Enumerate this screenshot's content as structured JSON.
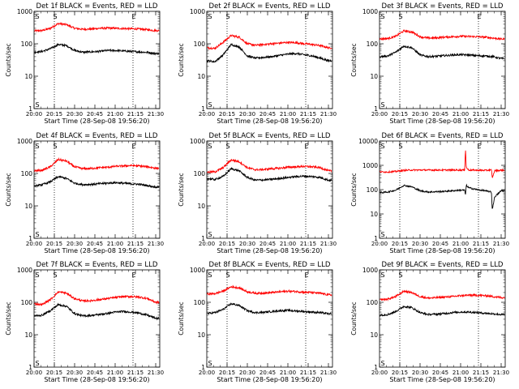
{
  "figure": {
    "background": "#ffffff",
    "axis_color": "#000000"
  },
  "chart_data": [
    {
      "id": "det1f",
      "type": "line",
      "title": "Det 1f BLACK = Events, RED = LLD",
      "ylabel": "Counts/sec",
      "xlabel": "Start Time (28-Sep-08 19:56:20)",
      "show_ylabel": true,
      "show_xlabel": true,
      "yscale": "log",
      "ylim": [
        1,
        1000
      ],
      "xlim": [
        20.0,
        21.55
      ],
      "ytick_labels": [
        "1",
        "10",
        "100",
        "1000"
      ],
      "xtick_labels": [
        "20:00",
        "20:15",
        "20:30",
        "20:45",
        "21:00",
        "21:15",
        "21:30"
      ],
      "vlines": [
        20.25,
        21.22
      ],
      "vline_labels": [
        "S",
        "E"
      ],
      "series": [
        {
          "color": "#ff0000",
          "x": [
            20.0,
            20.1,
            20.2,
            20.3,
            20.4,
            20.5,
            20.6,
            20.7,
            20.8,
            20.9,
            21.0,
            21.1,
            21.2,
            21.3,
            21.4,
            21.5
          ],
          "values": [
            250,
            255,
            300,
            420,
            390,
            300,
            280,
            285,
            300,
            305,
            300,
            295,
            290,
            285,
            270,
            255
          ]
        },
        {
          "color": "#000000",
          "x": [
            20.0,
            20.1,
            20.2,
            20.3,
            20.4,
            20.5,
            20.6,
            20.7,
            20.8,
            20.9,
            21.0,
            21.1,
            21.2,
            21.3,
            21.4,
            21.5
          ],
          "values": [
            55,
            58,
            70,
            95,
            88,
            62,
            55,
            56,
            58,
            62,
            62,
            60,
            58,
            56,
            54,
            50
          ]
        }
      ]
    },
    {
      "id": "det2f",
      "type": "line",
      "title": "Det 2f BLACK = Events, RED = LLD",
      "ylabel": "Counts/sec",
      "xlabel": "Start Time (28-Sep-08 19:56:20)",
      "show_ylabel": true,
      "show_xlabel": true,
      "yscale": "log",
      "ylim": [
        1,
        1000
      ],
      "xlim": [
        20.0,
        21.55
      ],
      "ytick_labels": [
        "1",
        "10",
        "100",
        "1000"
      ],
      "xtick_labels": [
        "20:00",
        "20:15",
        "20:30",
        "20:45",
        "21:00",
        "21:15",
        "21:30"
      ],
      "vlines": [
        20.25,
        21.22
      ],
      "vline_labels": [
        "S",
        "E"
      ],
      "series": [
        {
          "color": "#ff0000",
          "x": [
            20.0,
            20.1,
            20.2,
            20.3,
            20.4,
            20.5,
            20.6,
            20.7,
            20.8,
            20.9,
            21.0,
            21.1,
            21.2,
            21.3,
            21.4,
            21.5
          ],
          "values": [
            75,
            72,
            110,
            180,
            160,
            100,
            90,
            95,
            100,
            105,
            110,
            108,
            100,
            95,
            88,
            75
          ]
        },
        {
          "color": "#000000",
          "x": [
            20.0,
            20.1,
            20.2,
            20.3,
            20.4,
            20.5,
            20.6,
            20.7,
            20.8,
            20.9,
            21.0,
            21.1,
            21.2,
            21.3,
            21.4,
            21.5
          ],
          "values": [
            30,
            28,
            45,
            95,
            80,
            42,
            36,
            38,
            40,
            44,
            48,
            50,
            46,
            42,
            36,
            30
          ]
        }
      ]
    },
    {
      "id": "det3f",
      "type": "line",
      "title": "Det 3f BLACK = Events, RED = LLD",
      "ylabel": "Counts/sec",
      "xlabel": "Start Time (28-Sep-08 19:56:20)",
      "show_ylabel": true,
      "show_xlabel": true,
      "yscale": "log",
      "ylim": [
        1,
        1000
      ],
      "xlim": [
        20.0,
        21.55
      ],
      "ytick_labels": [
        "1",
        "10",
        "100",
        "1000"
      ],
      "xtick_labels": [
        "20:00",
        "20:15",
        "20:30",
        "20:45",
        "21:00",
        "21:15",
        "21:30"
      ],
      "vlines": [
        20.25,
        21.22
      ],
      "vline_labels": [
        "S",
        "E"
      ],
      "series": [
        {
          "color": "#ff0000",
          "x": [
            20.0,
            20.1,
            20.2,
            20.3,
            20.4,
            20.5,
            20.6,
            20.7,
            20.8,
            20.9,
            21.0,
            21.1,
            21.2,
            21.3,
            21.4,
            21.5
          ],
          "values": [
            140,
            145,
            170,
            250,
            230,
            165,
            150,
            152,
            160,
            165,
            170,
            168,
            165,
            160,
            150,
            140
          ]
        },
        {
          "color": "#000000",
          "x": [
            20.0,
            20.1,
            20.2,
            20.3,
            20.4,
            20.5,
            20.6,
            20.7,
            20.8,
            20.9,
            21.0,
            21.1,
            21.2,
            21.3,
            21.4,
            21.5
          ],
          "values": [
            40,
            42,
            55,
            85,
            75,
            45,
            40,
            41,
            43,
            45,
            46,
            45,
            43,
            42,
            40,
            35
          ]
        }
      ]
    },
    {
      "id": "det4f",
      "type": "line",
      "title": "Det 4f BLACK = Events, RED = LLD",
      "ylabel": "Counts/sec",
      "xlabel": "Start Time (28-Sep-08 19:56:20)",
      "show_ylabel": true,
      "show_xlabel": true,
      "yscale": "log",
      "ylim": [
        1,
        1000
      ],
      "xlim": [
        20.0,
        21.55
      ],
      "ytick_labels": [
        "1",
        "10",
        "100",
        "1000"
      ],
      "xtick_labels": [
        "20:00",
        "20:15",
        "20:30",
        "20:45",
        "21:00",
        "21:15",
        "21:30"
      ],
      "vlines": [
        20.25,
        21.22
      ],
      "vline_labels": [
        "S",
        "E"
      ],
      "series": [
        {
          "color": "#ff0000",
          "x": [
            20.0,
            20.1,
            20.2,
            20.3,
            20.4,
            20.5,
            20.6,
            20.7,
            20.8,
            20.9,
            21.0,
            21.1,
            21.2,
            21.3,
            21.4,
            21.5
          ],
          "values": [
            120,
            125,
            160,
            270,
            240,
            160,
            140,
            142,
            150,
            155,
            165,
            170,
            175,
            170,
            160,
            145
          ]
        },
        {
          "color": "#000000",
          "x": [
            20.0,
            20.1,
            20.2,
            20.3,
            20.4,
            20.5,
            20.6,
            20.7,
            20.8,
            20.9,
            21.0,
            21.1,
            21.2,
            21.3,
            21.4,
            21.5
          ],
          "values": [
            40,
            45,
            55,
            80,
            70,
            50,
            45,
            46,
            48,
            50,
            52,
            50,
            48,
            46,
            42,
            38
          ]
        }
      ]
    },
    {
      "id": "det5f",
      "type": "line",
      "title": "Det 5f BLACK = Events, RED = LLD",
      "ylabel": "Counts/sec",
      "xlabel": "Start Time (28-Sep-08 19:56:20)",
      "show_ylabel": true,
      "show_xlabel": true,
      "yscale": "log",
      "ylim": [
        1,
        1000
      ],
      "xlim": [
        20.0,
        21.55
      ],
      "ytick_labels": [
        "1",
        "10",
        "100",
        "1000"
      ],
      "xtick_labels": [
        "20:00",
        "20:15",
        "20:30",
        "20:45",
        "21:00",
        "21:15",
        "21:30"
      ],
      "vlines": [
        20.25,
        21.22
      ],
      "vline_labels": [
        "S",
        "E"
      ],
      "series": [
        {
          "color": "#ff0000",
          "x": [
            20.0,
            20.1,
            20.2,
            20.3,
            20.4,
            20.5,
            20.6,
            20.7,
            20.8,
            20.9,
            21.0,
            21.1,
            21.2,
            21.3,
            21.4,
            21.5
          ],
          "values": [
            110,
            112,
            150,
            260,
            230,
            150,
            130,
            132,
            140,
            145,
            155,
            160,
            165,
            160,
            150,
            120
          ]
        },
        {
          "color": "#000000",
          "x": [
            20.0,
            20.1,
            20.2,
            20.3,
            20.4,
            20.5,
            20.6,
            20.7,
            20.8,
            20.9,
            21.0,
            21.1,
            21.2,
            21.3,
            21.4,
            21.5
          ],
          "values": [
            70,
            65,
            80,
            140,
            120,
            75,
            62,
            63,
            66,
            70,
            75,
            80,
            82,
            80,
            75,
            62
          ]
        }
      ]
    },
    {
      "id": "det6f",
      "type": "line",
      "title": "Det 6f BLACK = Events, RED = LLD",
      "ylabel": "Counts/sec",
      "xlabel": "Start Time (28-Sep-08 19:56:20)",
      "show_ylabel": true,
      "show_xlabel": true,
      "yscale": "log",
      "ylim": [
        1,
        10000
      ],
      "xlim": [
        20.0,
        21.55
      ],
      "ytick_labels": [
        "1",
        "10",
        "100",
        "1000",
        "10000"
      ],
      "xtick_labels": [
        "20:00",
        "20:15",
        "20:30",
        "20:45",
        "21:00",
        "21:15",
        "21:30"
      ],
      "vlines": [
        20.25,
        21.22
      ],
      "vline_labels": [
        "S",
        "E"
      ],
      "series": [
        {
          "color": "#ff0000",
          "x": [
            20.0,
            20.1,
            20.2,
            20.3,
            20.4,
            20.5,
            20.6,
            20.7,
            20.8,
            20.9,
            21.0,
            21.05,
            21.06,
            21.07,
            21.1,
            21.2,
            21.3,
            21.38,
            21.39,
            21.42,
            21.5
          ],
          "values": [
            540,
            530,
            560,
            620,
            640,
            640,
            640,
            640,
            640,
            640,
            640,
            640,
            5000,
            800,
            640,
            630,
            620,
            650,
            300,
            600,
            630
          ]
        },
        {
          "color": "#000000",
          "x": [
            20.0,
            20.1,
            20.2,
            20.3,
            20.4,
            20.5,
            20.6,
            20.7,
            20.8,
            20.9,
            21.0,
            21.05,
            21.06,
            21.07,
            21.1,
            21.2,
            21.3,
            21.38,
            21.39,
            21.42,
            21.5
          ],
          "values": [
            75,
            80,
            95,
            150,
            130,
            90,
            80,
            82,
            85,
            90,
            95,
            95,
            60,
            150,
            120,
            100,
            90,
            80,
            15,
            50,
            90
          ]
        }
      ]
    },
    {
      "id": "det7f",
      "type": "line",
      "title": "Det 7f BLACK = Events, RED = LLD",
      "ylabel": "Counts/sec",
      "xlabel": "Start Time (28-Sep-08 19:56:20)",
      "show_ylabel": true,
      "show_xlabel": true,
      "yscale": "log",
      "ylim": [
        1,
        1000
      ],
      "xlim": [
        20.0,
        21.55
      ],
      "ytick_labels": [
        "1",
        "10",
        "100",
        "1000"
      ],
      "xtick_labels": [
        "20:00",
        "20:15",
        "20:30",
        "20:45",
        "21:00",
        "21:15",
        "21:30"
      ],
      "vlines": [
        20.25,
        21.22
      ],
      "vline_labels": [
        "S",
        "E"
      ],
      "series": [
        {
          "color": "#ff0000",
          "x": [
            20.0,
            20.1,
            20.2,
            20.3,
            20.4,
            20.5,
            20.6,
            20.7,
            20.8,
            20.9,
            21.0,
            21.1,
            21.2,
            21.3,
            21.4,
            21.5
          ],
          "values": [
            90,
            85,
            120,
            210,
            190,
            130,
            110,
            112,
            120,
            130,
            140,
            150,
            150,
            145,
            130,
            100
          ]
        },
        {
          "color": "#000000",
          "x": [
            20.0,
            20.1,
            20.2,
            20.3,
            20.4,
            20.5,
            20.6,
            20.7,
            20.8,
            20.9,
            21.0,
            21.1,
            21.2,
            21.3,
            21.4,
            21.5
          ],
          "values": [
            38,
            40,
            55,
            85,
            75,
            45,
            38,
            39,
            42,
            45,
            50,
            52,
            50,
            46,
            40,
            32
          ]
        }
      ]
    },
    {
      "id": "det8f",
      "type": "line",
      "title": "Det 8f BLACK = Events, RED = LLD",
      "ylabel": "Counts/sec",
      "xlabel": "Start Time (28-Sep-08 19:56:20)",
      "show_ylabel": true,
      "show_xlabel": true,
      "yscale": "log",
      "ylim": [
        1,
        1000
      ],
      "xlim": [
        20.0,
        21.55
      ],
      "ytick_labels": [
        "1",
        "10",
        "100",
        "1000"
      ],
      "xtick_labels": [
        "20:00",
        "20:15",
        "20:30",
        "20:45",
        "21:00",
        "21:15",
        "21:30"
      ],
      "vlines": [
        20.25,
        21.22
      ],
      "vline_labels": [
        "S",
        "E"
      ],
      "series": [
        {
          "color": "#ff0000",
          "x": [
            20.0,
            20.1,
            20.2,
            20.3,
            20.4,
            20.5,
            20.6,
            20.7,
            20.8,
            20.9,
            21.0,
            21.1,
            21.2,
            21.3,
            21.4,
            21.5
          ],
          "values": [
            180,
            185,
            220,
            300,
            280,
            210,
            190,
            192,
            200,
            210,
            220,
            215,
            205,
            200,
            190,
            170
          ]
        },
        {
          "color": "#000000",
          "x": [
            20.0,
            20.1,
            20.2,
            20.3,
            20.4,
            20.5,
            20.6,
            20.7,
            20.8,
            20.9,
            21.0,
            21.1,
            21.2,
            21.3,
            21.4,
            21.5
          ],
          "values": [
            45,
            48,
            60,
            90,
            80,
            55,
            48,
            49,
            52,
            55,
            56,
            54,
            52,
            50,
            48,
            44
          ]
        }
      ]
    },
    {
      "id": "det9f",
      "type": "line",
      "title": "Det 9f BLACK = Events, RED = LLD",
      "ylabel": "Counts/sec",
      "xlabel": "Start Time (28-Sep-08 19:56:20)",
      "show_ylabel": true,
      "show_xlabel": true,
      "yscale": "log",
      "ylim": [
        1,
        1000
      ],
      "xlim": [
        20.0,
        21.55
      ],
      "ytick_labels": [
        "1",
        "10",
        "100",
        "1000"
      ],
      "xtick_labels": [
        "20:00",
        "20:15",
        "20:30",
        "20:45",
        "21:00",
        "21:15",
        "21:30"
      ],
      "vlines": [
        20.25,
        21.22
      ],
      "vline_labels": [
        "S",
        "E"
      ],
      "series": [
        {
          "color": "#ff0000",
          "x": [
            20.0,
            20.1,
            20.2,
            20.3,
            20.4,
            20.5,
            20.6,
            20.7,
            20.8,
            20.9,
            21.0,
            21.1,
            21.2,
            21.3,
            21.4,
            21.5
          ],
          "values": [
            120,
            125,
            150,
            220,
            200,
            150,
            135,
            138,
            145,
            150,
            160,
            165,
            165,
            160,
            150,
            140
          ]
        },
        {
          "color": "#000000",
          "x": [
            20.0,
            20.1,
            20.2,
            20.3,
            20.4,
            20.5,
            20.6,
            20.7,
            20.8,
            20.9,
            21.0,
            21.1,
            21.2,
            21.3,
            21.4,
            21.5
          ],
          "values": [
            40,
            42,
            52,
            75,
            68,
            48,
            42,
            43,
            45,
            48,
            50,
            50,
            48,
            46,
            44,
            42
          ]
        }
      ]
    }
  ]
}
